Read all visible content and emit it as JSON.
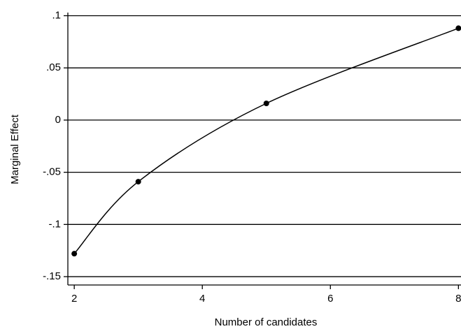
{
  "chart_data": {
    "type": "line",
    "x_label": "Number of candidates",
    "y_label": "Marginal Effect",
    "x": [
      2,
      3,
      5,
      8
    ],
    "series": [
      {
        "color": "#000000",
        "values": [
          -0.128,
          -0.059,
          0.016,
          0.088
        ]
      }
    ],
    "xlim": [
      1.9,
      8.04
    ],
    "xticks": [
      2,
      4,
      6,
      8
    ],
    "ylim": [
      -0.158,
      0.103
    ],
    "yticks": [
      {
        "value": 0.1,
        "label": ".1"
      },
      {
        "value": 0.05,
        "label": ".05"
      },
      0,
      {
        "value": -0.05,
        "label": "-.05"
      },
      {
        "value": -0.1,
        "label": "-.1"
      },
      {
        "value": -0.15,
        "label": "-.15"
      }
    ],
    "grid": true,
    "markers": true,
    "smooth": true
  }
}
